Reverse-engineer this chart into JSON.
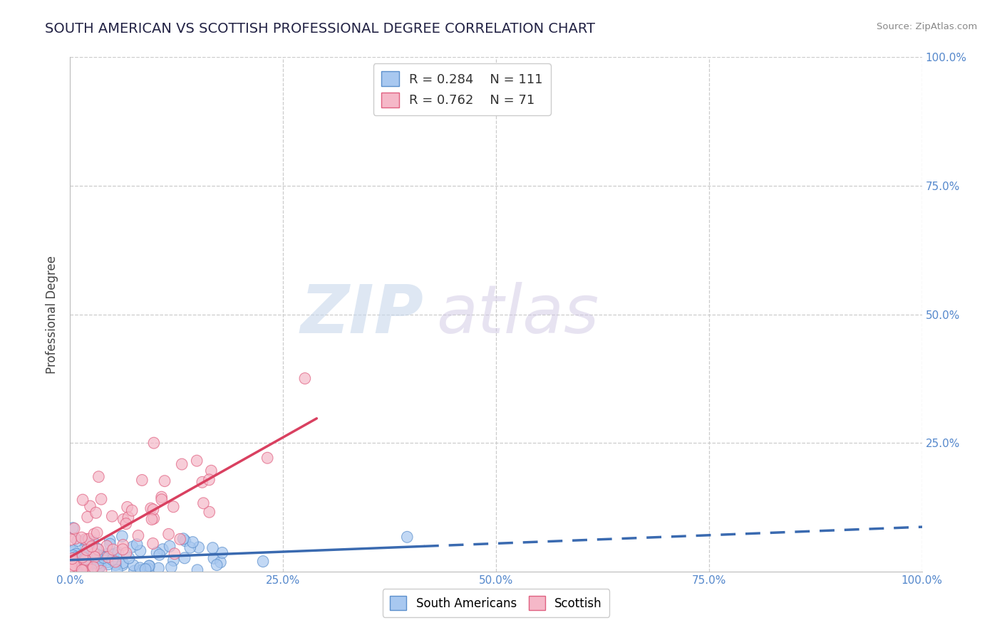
{
  "title": "SOUTH AMERICAN VS SCOTTISH PROFESSIONAL DEGREE CORRELATION CHART",
  "source": "Source: ZipAtlas.com",
  "ylabel": "Professional Degree",
  "series1_label": "South Americans",
  "series1_color": "#A8C8F0",
  "series1_edge_color": "#5B8FCC",
  "series1_line_color": "#3A6AB0",
  "series1_R": 0.284,
  "series1_N": 111,
  "series2_label": "Scottish",
  "series2_color": "#F5B8C8",
  "series2_edge_color": "#E06080",
  "series2_line_color": "#D94060",
  "series2_R": 0.762,
  "series2_N": 71,
  "xlim": [
    0.0,
    1.0
  ],
  "ylim": [
    0.0,
    1.0
  ],
  "xtick_vals": [
    0.0,
    0.25,
    0.5,
    0.75,
    1.0
  ],
  "xticklabels": [
    "0.0%",
    "25.0%",
    "50.0%",
    "75.0%",
    "100.0%"
  ],
  "ytick_vals": [
    0.0,
    0.25,
    0.5,
    0.75,
    1.0
  ],
  "right_yticklabels": [
    "",
    "25.0%",
    "50.0%",
    "75.0%",
    "100.0%"
  ],
  "background_color": "#FFFFFF",
  "grid_color": "#CCCCCC",
  "watermark1": "ZIP",
  "watermark2": "atlas",
  "tick_color": "#5588CC",
  "s1_seed": 77,
  "s2_seed": 55
}
